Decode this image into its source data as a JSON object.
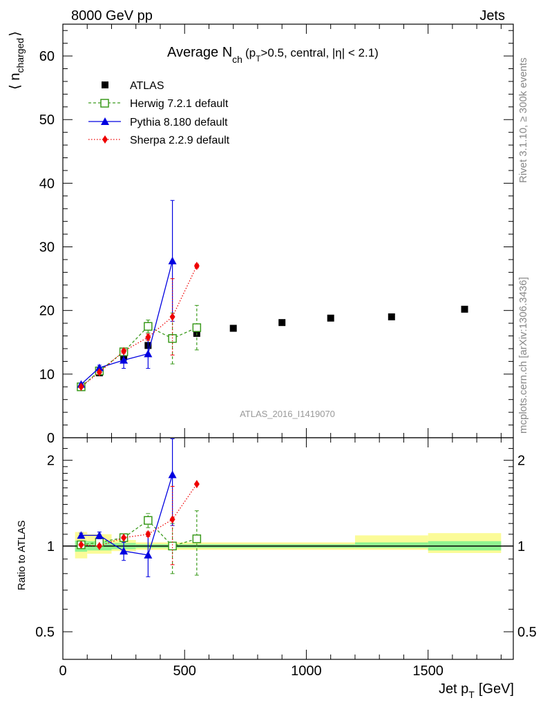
{
  "header": {
    "energy_label": "8000 GeV pp",
    "process_label": "Jets",
    "rivet_label": "Rivet 3.1.10, ≥ 300k events",
    "mcplots_label": "mcplots.cern.ch [arXiv:1306.3436]",
    "analysis_label": "ATLAS_2016_I1419070"
  },
  "colors": {
    "atlas": "#000000",
    "herwig": "#3a9a1c",
    "pythia": "#0000e0",
    "sherpa": "#ee0000",
    "band_inner": "#90f590",
    "band_outer": "#fbfb98"
  },
  "chart_data": [
    {
      "type": "scatter",
      "title": "Average N_ch (p_T>0.5, central, |η| < 2.1)",
      "title_main": "Average N",
      "title_sub": "ch",
      "title_rest": "(p",
      "title_rest_sub": "T",
      "title_rest2": ">0.5, central, |η| < 2.1)",
      "ylabel": "⟨ n_charged ⟩",
      "ylabel_left": "⟨ n",
      "ylabel_sub": "charged",
      "ylabel_right": "⟩",
      "xlim": [
        0,
        1850
      ],
      "ylim": [
        0,
        65
      ],
      "yticks": [
        0,
        10,
        20,
        30,
        40,
        50,
        60
      ],
      "legend_position": "top-left",
      "series": [
        {
          "name": "ATLAS",
          "x": [
            75,
            150,
            250,
            350,
            450,
            550,
            700,
            900,
            1100,
            1350,
            1650
          ],
          "y": [
            7.9,
            10.2,
            12.7,
            14.5,
            15.6,
            16.4,
            17.2,
            18.1,
            18.8,
            19.0,
            20.2
          ]
        },
        {
          "name": "Herwig 7.2.1 default",
          "x": [
            75,
            150,
            250,
            350,
            450,
            550
          ],
          "y": [
            8.0,
            10.5,
            13.5,
            17.5,
            15.6,
            17.3
          ],
          "err": [
            0.2,
            0.3,
            0.5,
            1.0,
            4.0,
            3.5
          ]
        },
        {
          "name": "Pythia 8.180 default",
          "x": [
            75,
            150,
            250,
            350,
            450
          ],
          "y": [
            8.4,
            11.0,
            12.2,
            13.2,
            27.8
          ],
          "err": [
            0.2,
            0.4,
            1.3,
            2.3,
            9.5
          ]
        },
        {
          "name": "Sherpa 2.2.9 default",
          "x": [
            75,
            150,
            250,
            350,
            450,
            550
          ],
          "y": [
            8.0,
            10.3,
            13.6,
            15.8,
            19.0,
            27.0
          ],
          "err": [
            0.1,
            0.2,
            0.3,
            0.5,
            6.0,
            0.3
          ]
        }
      ]
    },
    {
      "type": "scatter",
      "ylabel": "Ratio to ATLAS",
      "xlabel": "Jet p_T [GeV]",
      "xlabel_main": "Jet p",
      "xlabel_sub": "T",
      "xlabel_unit": "[GeV]",
      "xlim": [
        0,
        1850
      ],
      "xticks": [
        0,
        500,
        1000,
        1500
      ],
      "ylim": [
        0.4,
        2.4
      ],
      "yticks": [
        0.5,
        1,
        2
      ],
      "ytick_labels": [
        "0.5",
        "1",
        "2"
      ],
      "reference_bands": [
        {
          "x0": 50,
          "x1": 100,
          "inner": [
            0.955,
            1.045
          ],
          "outer": [
            0.905,
            1.12
          ]
        },
        {
          "x0": 100,
          "x1": 200,
          "inner": [
            0.965,
            1.04
          ],
          "outer": [
            0.94,
            1.1
          ]
        },
        {
          "x0": 200,
          "x1": 300,
          "inner": [
            0.975,
            1.025
          ],
          "outer": [
            0.96,
            1.05
          ]
        },
        {
          "x0": 300,
          "x1": 1200,
          "inner": [
            0.985,
            1.015
          ],
          "outer": [
            0.97,
            1.03
          ]
        },
        {
          "x0": 1200,
          "x1": 1500,
          "inner": [
            0.985,
            1.03
          ],
          "outer": [
            0.97,
            1.09
          ]
        },
        {
          "x0": 1500,
          "x1": 1800,
          "inner": [
            0.965,
            1.04
          ],
          "outer": [
            0.945,
            1.11
          ]
        }
      ],
      "series": [
        {
          "name": "Herwig 7.2.1 default",
          "x": [
            75,
            150,
            250,
            350,
            450,
            550
          ],
          "y": [
            1.01,
            1.03,
            1.07,
            1.23,
            1.0,
            1.06
          ],
          "err": [
            0.02,
            0.02,
            0.03,
            0.07,
            0.2,
            0.27
          ]
        },
        {
          "name": "Pythia 8.180 default",
          "x": [
            75,
            150,
            250,
            350,
            450
          ],
          "y": [
            1.09,
            1.09,
            0.96,
            0.93,
            1.78
          ],
          "err": [
            0.02,
            0.03,
            0.07,
            0.15,
            0.6
          ]
        },
        {
          "name": "Sherpa 2.2.9 default",
          "x": [
            75,
            150,
            250,
            350,
            450,
            550
          ],
          "y": [
            1.01,
            1.0,
            1.07,
            1.1,
            1.24,
            1.65
          ],
          "err": [
            0.01,
            0.01,
            0.01,
            0.02,
            0.38,
            0.01
          ]
        }
      ]
    }
  ]
}
